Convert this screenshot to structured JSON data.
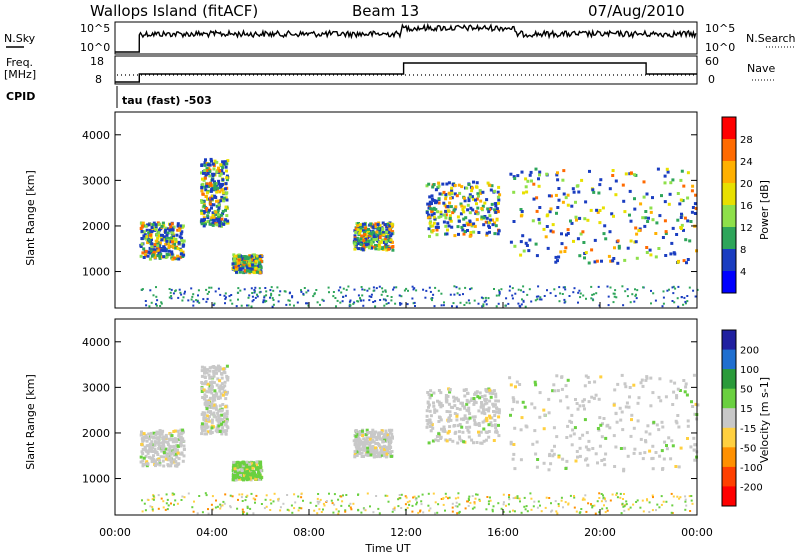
{
  "header": {
    "station": "Wallops Island (fitACF)",
    "beam": "Beam 13",
    "date": "07/Aug/2010"
  },
  "params": {
    "nsky_label": "N.Sky",
    "nsearch_label": "N.Search",
    "freq_label": "Freq.",
    "freq_unit": "[MHz]",
    "nave_label": "Nave",
    "cpid_label": "CPID",
    "cpid_text": "tau (fast) -503",
    "noise_ticks": [
      "10^5",
      "10^0"
    ],
    "noise_ticks_right": [
      "10^5",
      "10^0"
    ],
    "freq_ticks": [
      "18",
      "8"
    ],
    "nave_ticks": [
      "60",
      "0"
    ]
  },
  "chart_data": [
    {
      "type": "heatmap",
      "name": "power",
      "ylabel": "Slant Range [km]",
      "xlabel": "",
      "xlim": [
        0,
        24
      ],
      "ylim": [
        200,
        4500
      ],
      "yticks": [
        1000,
        2000,
        3000,
        4000
      ],
      "colorbar": {
        "label": "Power [dB]",
        "ticks": [
          28,
          24,
          20,
          16,
          12,
          8,
          4
        ],
        "colors": [
          "#ff0000",
          "#ff6a00",
          "#ffb000",
          "#e8e000",
          "#8ee04a",
          "#2ea55a",
          "#1a3dc0",
          "#0000ff"
        ]
      },
      "echo_regions": [
        {
          "t": [
            1.0,
            2.8
          ],
          "r": [
            1300,
            2100
          ]
        },
        {
          "t": [
            3.5,
            4.6
          ],
          "r": [
            2000,
            3500
          ]
        },
        {
          "t": [
            4.8,
            6.0
          ],
          "r": [
            1000,
            1400
          ]
        },
        {
          "t": [
            9.8,
            11.4
          ],
          "r": [
            1500,
            2100
          ]
        },
        {
          "t": [
            12.8,
            15.8
          ],
          "r": [
            1800,
            3000
          ]
        },
        {
          "t": [
            16.2,
            24.0
          ],
          "r": [
            1200,
            3300
          ]
        }
      ]
    },
    {
      "type": "heatmap",
      "name": "velocity",
      "ylabel": "Slant Range [km]",
      "xlabel": "Time UT",
      "xlim": [
        0,
        24
      ],
      "ylim": [
        200,
        4500
      ],
      "yticks": [
        1000,
        2000,
        3000,
        4000
      ],
      "xticks": [
        "00:00",
        "04:00",
        "08:00",
        "12:00",
        "16:00",
        "20:00",
        "00:00"
      ],
      "colorbar": {
        "label": "Velocity [m s-1]",
        "ticks": [
          200,
          100,
          50,
          15,
          -15,
          -50,
          -100,
          -200
        ],
        "colors": [
          "#2020a0",
          "#1f6fd0",
          "#2a9a3a",
          "#6ad040",
          "#c8c8c8",
          "#ffd040",
          "#ff9000",
          "#ff4000",
          "#ff0000"
        ]
      }
    }
  ]
}
